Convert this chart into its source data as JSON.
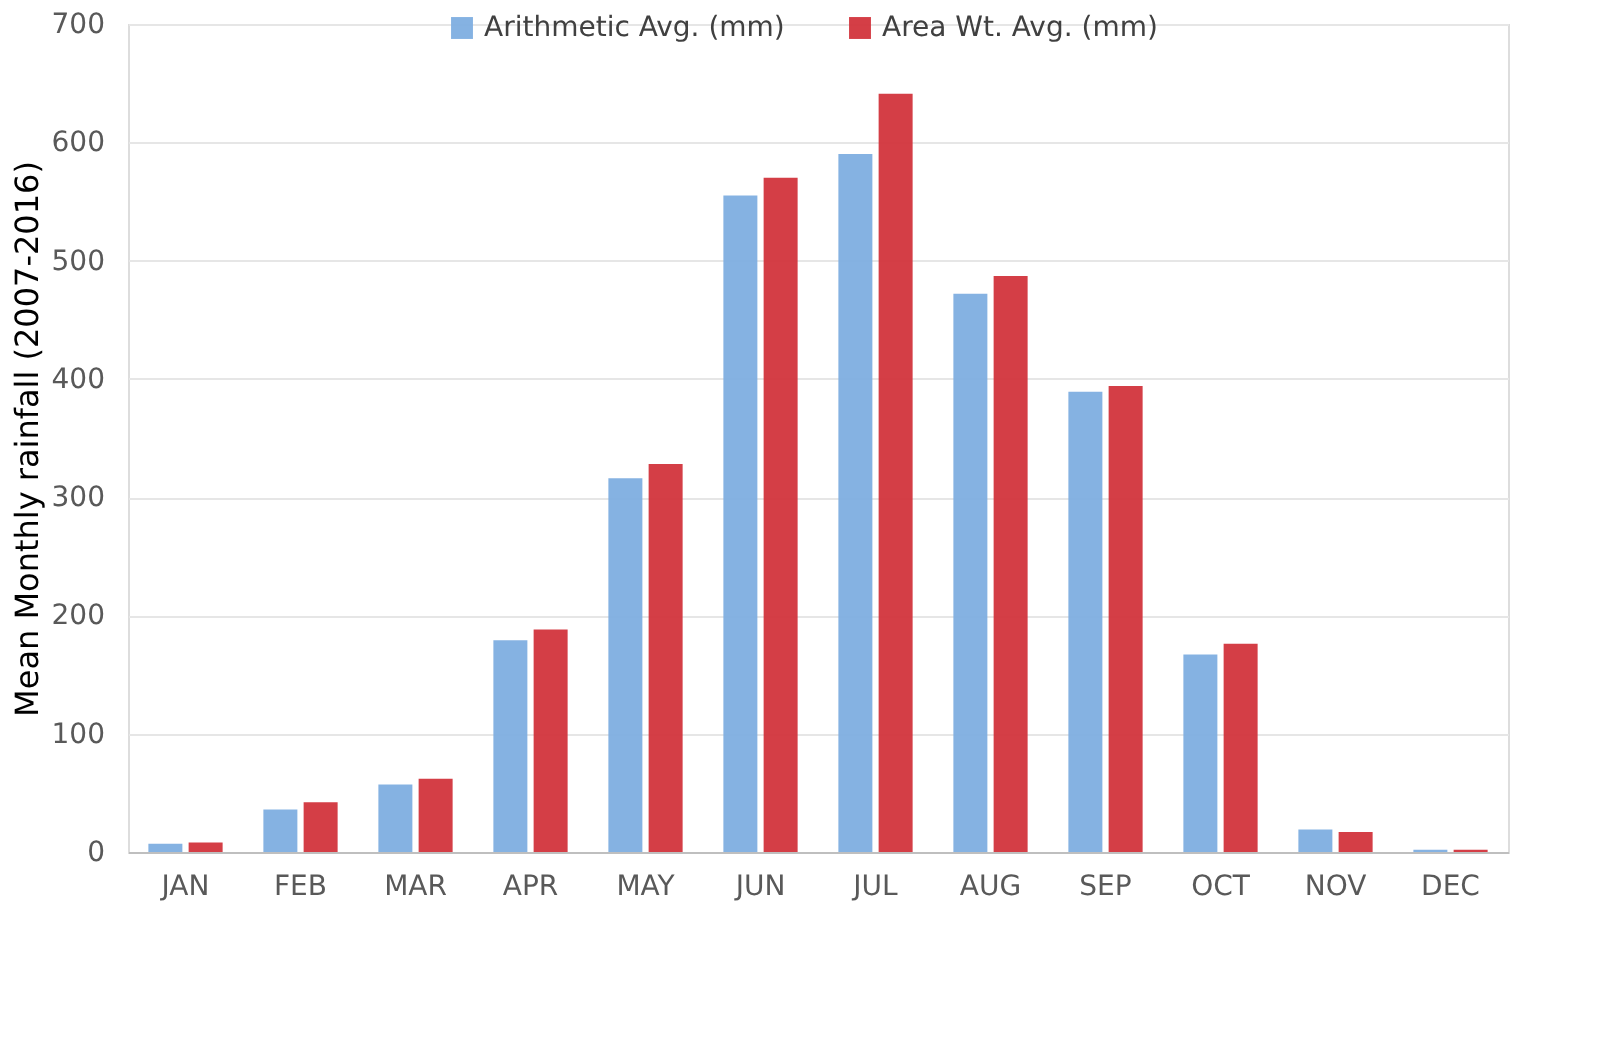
{
  "chart_data": {
    "type": "bar",
    "ylabel": "Mean Monthly rainfall (2007-2016)",
    "categories": [
      "JAN",
      "FEB",
      "MAR",
      "APR",
      "MAY",
      "JUN",
      "JUL",
      "AUG",
      "SEP",
      "OCT",
      "NOV",
      "DEC"
    ],
    "series": [
      {
        "name": "Arithmetic Avg. (mm)",
        "color": "#7eaee0",
        "values": [
          7,
          36,
          57,
          179,
          316,
          555,
          590,
          472,
          389,
          167,
          19,
          2
        ]
      },
      {
        "name": "Area Wt. Avg. (mm)",
        "color": "#d2343c",
        "values": [
          8,
          42,
          62,
          188,
          328,
          570,
          641,
          487,
          394,
          176,
          17,
          2
        ]
      }
    ],
    "ylim": [
      0,
      700
    ],
    "yticks": [
      0,
      100,
      200,
      300,
      400,
      500,
      600,
      700
    ],
    "grid": "y",
    "legend": "top"
  }
}
